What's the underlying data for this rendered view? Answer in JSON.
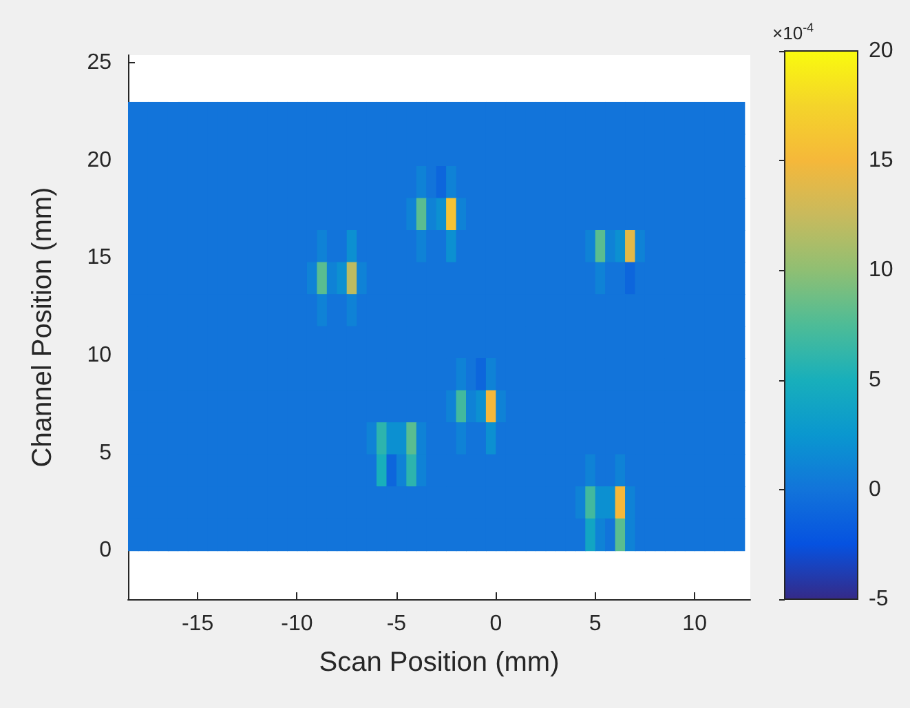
{
  "chart_data": {
    "type": "heatmap",
    "xlabel": "Scan Position (mm)",
    "ylabel": "Channel Position (mm)",
    "clabel": "×10$^{-4}$",
    "x": [
      -18.25,
      -17.75,
      -17.25,
      -16.75,
      -16.25,
      -15.75,
      -15.25,
      -14.75,
      -14.25,
      -13.75,
      -13.25,
      -12.75,
      -12.25,
      -11.75,
      -11.25,
      -10.75,
      -10.25,
      -9.75,
      -9.25,
      -8.75,
      -8.25,
      -7.75,
      -7.25,
      -6.75,
      -6.25,
      -5.75,
      -5.25,
      -4.75,
      -4.25,
      -3.75,
      -3.25,
      -2.75,
      -2.25,
      -1.75,
      -1.25,
      -0.75,
      -0.25,
      0.25,
      0.75,
      1.25,
      1.75,
      2.25,
      2.75,
      3.25,
      3.75,
      4.25,
      4.75,
      5.25,
      5.75,
      6.25,
      6.75,
      7.25,
      7.75,
      8.25,
      8.75,
      9.25,
      9.75,
      10.25,
      10.75,
      11.25,
      11.75,
      12.25
    ],
    "y": [
      22.18,
      20.54,
      18.89,
      17.25,
      15.61,
      13.96,
      12.32,
      10.68,
      9.04,
      7.39,
      5.75,
      4.11,
      2.46,
      0.82
    ],
    "cells": [
      [
        0,
        0,
        0,
        0,
        0,
        0,
        0,
        0,
        0,
        0,
        0,
        0,
        0,
        0,
        0,
        0,
        0,
        0,
        0,
        0,
        0,
        0,
        0,
        0,
        0,
        0,
        0,
        0,
        0,
        0,
        0,
        0,
        0,
        0,
        0,
        0,
        0,
        0,
        0,
        0,
        0,
        0,
        0,
        0,
        0,
        0,
        0,
        0,
        0,
        0,
        0,
        0,
        0,
        0,
        0,
        0,
        0,
        0,
        0,
        0,
        0,
        0
      ],
      [
        0,
        0,
        0,
        0,
        0,
        0,
        0,
        0,
        0,
        0,
        0,
        0,
        0,
        0,
        0,
        0,
        0,
        0,
        0,
        0,
        0,
        0,
        0,
        0,
        0,
        0,
        0,
        0,
        0,
        0,
        0,
        0,
        0,
        0,
        0,
        0,
        0,
        0,
        0,
        0,
        0,
        0,
        0,
        0,
        0,
        0,
        0,
        0,
        0,
        0,
        0,
        0,
        0,
        0,
        0,
        0,
        0,
        0,
        0,
        0,
        0,
        0
      ],
      [
        0,
        0,
        0,
        0,
        0,
        0,
        0,
        0,
        0,
        0,
        0,
        0,
        0,
        0,
        0,
        0,
        0,
        0,
        0,
        0,
        0,
        0,
        0,
        0,
        0,
        0,
        0,
        0,
        0,
        1,
        0,
        -1,
        1,
        0,
        0,
        0,
        0,
        0,
        0,
        0,
        0,
        0,
        0,
        0,
        0,
        0,
        0,
        0,
        0,
        0,
        0,
        0,
        0,
        0,
        0,
        0,
        0,
        0,
        0,
        0,
        0,
        0
      ],
      [
        0,
        0,
        0,
        0,
        0,
        0,
        0,
        0,
        0,
        0,
        0,
        0,
        0,
        0,
        0,
        0,
        0,
        0,
        0,
        0,
        0,
        0,
        0,
        0,
        0,
        0,
        0,
        0,
        1,
        8,
        1,
        2,
        16,
        1,
        0,
        0,
        0,
        0,
        0,
        0,
        0,
        0,
        0,
        0,
        0,
        0,
        0,
        0,
        0,
        0,
        0,
        0,
        0,
        0,
        0,
        0,
        0,
        0,
        0,
        0,
        0,
        0
      ],
      [
        0,
        0,
        0,
        0,
        0,
        0,
        0,
        0,
        0,
        0,
        0,
        0,
        0,
        0,
        0,
        0,
        0,
        0,
        0,
        1,
        0,
        0,
        2,
        0,
        0,
        0,
        0,
        0,
        0,
        1,
        0,
        0,
        2,
        0,
        0,
        0,
        0,
        0,
        0,
        0,
        0,
        0,
        0,
        0,
        0,
        0,
        1,
        8,
        1,
        2,
        14,
        1,
        0,
        0,
        0,
        0,
        0,
        0,
        0,
        0,
        0,
        0
      ],
      [
        0,
        0,
        0,
        0,
        0,
        0,
        0,
        0,
        0,
        0,
        0,
        0,
        0,
        0,
        0,
        0,
        0,
        0,
        1,
        8,
        1,
        2,
        12,
        1,
        0,
        0,
        0,
        0,
        0,
        0,
        0,
        0,
        0,
        0,
        0,
        0,
        0,
        0,
        0,
        0,
        0,
        0,
        0,
        0,
        0,
        0,
        0,
        1,
        0,
        0,
        -1,
        0,
        0,
        0,
        0,
        0,
        0,
        0,
        0,
        0,
        0,
        0
      ],
      [
        0,
        0,
        0,
        0,
        0,
        0,
        0,
        0,
        0,
        0,
        0,
        0,
        0,
        0,
        0,
        0,
        0,
        0,
        0,
        1,
        0,
        0,
        1,
        0,
        0,
        0,
        0,
        0,
        0,
        0,
        0,
        0,
        0,
        0,
        0,
        0,
        0,
        0,
        0,
        0,
        0,
        0,
        0,
        0,
        0,
        0,
        0,
        0,
        0,
        0,
        0,
        0,
        0,
        0,
        0,
        0,
        0,
        0,
        0,
        0,
        0,
        0
      ],
      [
        0,
        0,
        0,
        0,
        0,
        0,
        0,
        0,
        0,
        0,
        0,
        0,
        0,
        0,
        0,
        0,
        0,
        0,
        0,
        0,
        0,
        0,
        0,
        0,
        0,
        0,
        0,
        0,
        0,
        0,
        0,
        0,
        0,
        0,
        0,
        0,
        0,
        0,
        0,
        0,
        0,
        0,
        0,
        0,
        0,
        0,
        0,
        0,
        0,
        0,
        0,
        0,
        0,
        0,
        0,
        0,
        0,
        0,
        0,
        0,
        0,
        0
      ],
      [
        0,
        0,
        0,
        0,
        0,
        0,
        0,
        0,
        0,
        0,
        0,
        0,
        0,
        0,
        0,
        0,
        0,
        0,
        0,
        0,
        0,
        0,
        0,
        0,
        0,
        0,
        0,
        0,
        0,
        0,
        0,
        0,
        0,
        1,
        0,
        -1,
        1,
        0,
        0,
        0,
        0,
        0,
        0,
        0,
        0,
        0,
        0,
        0,
        0,
        0,
        0,
        0,
        0,
        0,
        0,
        0,
        0,
        0,
        0,
        0,
        0,
        0
      ],
      [
        0,
        0,
        0,
        0,
        0,
        0,
        0,
        0,
        0,
        0,
        0,
        0,
        0,
        0,
        0,
        0,
        0,
        0,
        0,
        0,
        0,
        0,
        0,
        0,
        0,
        0,
        0,
        0,
        0,
        0,
        0,
        0,
        1,
        7,
        1,
        2,
        15,
        1,
        0,
        0,
        0,
        0,
        0,
        0,
        0,
        0,
        0,
        0,
        0,
        0,
        0,
        0,
        0,
        0,
        0,
        0,
        0,
        0,
        0,
        0,
        0,
        0
      ],
      [
        0,
        0,
        0,
        0,
        0,
        0,
        0,
        0,
        0,
        0,
        0,
        0,
        0,
        0,
        0,
        0,
        0,
        0,
        0,
        0,
        0,
        0,
        0,
        0,
        1,
        6,
        2,
        2,
        8,
        1,
        0,
        0,
        0,
        1,
        0,
        0,
        2,
        0,
        0,
        0,
        0,
        0,
        0,
        0,
        0,
        0,
        0,
        0,
        0,
        0,
        0,
        0,
        0,
        0,
        0,
        0,
        0,
        0,
        0,
        0,
        0,
        0
      ],
      [
        0,
        0,
        0,
        0,
        0,
        0,
        0,
        0,
        0,
        0,
        0,
        0,
        0,
        0,
        0,
        0,
        0,
        0,
        0,
        0,
        0,
        0,
        0,
        0,
        0,
        5,
        -1,
        1,
        6,
        1,
        0,
        0,
        0,
        0,
        0,
        0,
        0,
        0,
        0,
        0,
        0,
        0,
        0,
        0,
        0,
        0,
        1,
        0,
        0,
        1,
        0,
        0,
        0,
        0,
        0,
        0,
        0,
        0,
        0,
        0,
        0,
        0
      ],
      [
        0,
        0,
        0,
        0,
        0,
        0,
        0,
        0,
        0,
        0,
        0,
        0,
        0,
        0,
        0,
        0,
        0,
        0,
        0,
        0,
        0,
        0,
        0,
        0,
        0,
        0,
        0,
        0,
        0,
        0,
        0,
        0,
        0,
        0,
        0,
        0,
        0,
        0,
        0,
        0,
        0,
        0,
        0,
        0,
        0,
        1,
        7,
        2,
        2,
        15,
        1,
        0,
        0,
        0,
        0,
        0,
        0,
        0,
        0,
        0,
        0,
        0
      ],
      [
        0,
        0,
        0,
        0,
        0,
        0,
        0,
        0,
        0,
        0,
        0,
        0,
        0,
        0,
        0,
        0,
        0,
        0,
        0,
        0,
        0,
        0,
        0,
        0,
        0,
        0,
        0,
        0,
        0,
        0,
        0,
        0,
        0,
        0,
        0,
        0,
        0,
        0,
        0,
        0,
        0,
        0,
        0,
        0,
        0,
        0,
        4,
        1,
        0,
        8,
        1,
        0,
        0,
        0,
        0,
        0,
        0,
        0,
        0,
        0,
        0,
        0
      ]
    ],
    "xlim": [
      -18.5,
      12.8
    ],
    "xticks": [
      -15,
      -10,
      -5,
      0,
      5,
      10
    ],
    "ylim": [
      -2.5,
      25.4
    ],
    "yticks": [
      0,
      5,
      10,
      15,
      20,
      25
    ],
    "clim": [
      -5,
      20
    ],
    "cticks": [
      -5,
      0,
      5,
      10,
      15,
      20
    ]
  }
}
